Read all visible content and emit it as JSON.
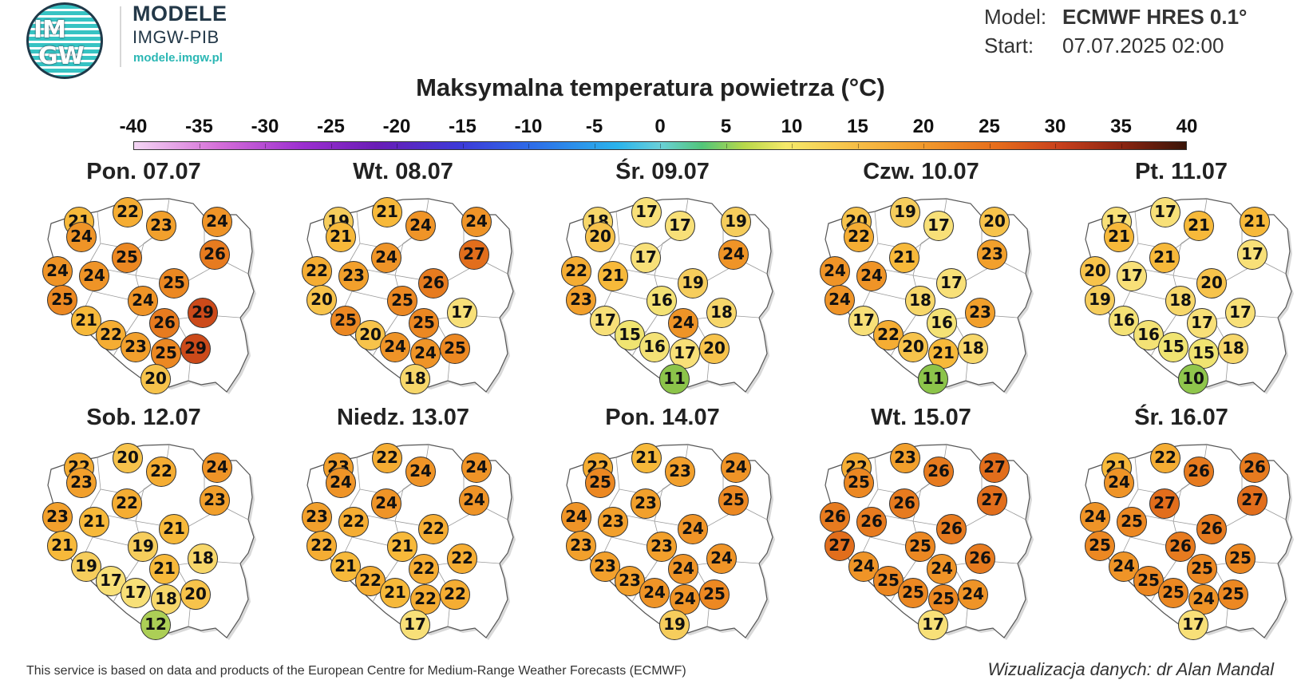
{
  "logo": {
    "text_top": "IM",
    "text_bottom": "GW",
    "name": "MODELE",
    "subname": "IMGW-PIB",
    "url": "modele.imgw.pl",
    "color_primary": "#233848",
    "color_accent": "#2bb7b4"
  },
  "meta": {
    "model_label": "Model:",
    "model_value": "ECMWF HRES 0.1°",
    "start_label": "Start:",
    "start_value": "07.07.2025 02:00"
  },
  "title": "Maksymalna temperatura powietrza (°C)",
  "colorbar": {
    "ticks": [
      "-40",
      "-35",
      "-30",
      "-25",
      "-20",
      "-15",
      "-10",
      "-5",
      "0",
      "5",
      "10",
      "15",
      "20",
      "25",
      "30",
      "35",
      "40"
    ],
    "min": -40,
    "max": 40
  },
  "days": [
    {
      "label": "Pon. 07.07",
      "temps": [
        21,
        22,
        24,
        23,
        24,
        25,
        26,
        24,
        24,
        25,
        25,
        24,
        29,
        21,
        26,
        22,
        23,
        25,
        29,
        20
      ]
    },
    {
      "label": "Wt. 08.07",
      "temps": [
        19,
        21,
        21,
        24,
        24,
        24,
        27,
        22,
        23,
        26,
        20,
        25,
        17,
        25,
        25,
        20,
        24,
        24,
        25,
        18
      ]
    },
    {
      "label": "Śr. 09.07",
      "temps": [
        18,
        17,
        20,
        17,
        19,
        17,
        24,
        22,
        21,
        19,
        23,
        16,
        18,
        17,
        24,
        15,
        16,
        17,
        20,
        11
      ]
    },
    {
      "label": "Czw. 10.07",
      "temps": [
        20,
        19,
        22,
        17,
        20,
        21,
        23,
        24,
        24,
        17,
        24,
        18,
        23,
        17,
        16,
        22,
        20,
        21,
        18,
        11
      ]
    },
    {
      "label": "Pt. 11.07",
      "temps": [
        17,
        17,
        21,
        21,
        21,
        21,
        17,
        20,
        17,
        20,
        19,
        18,
        17,
        16,
        17,
        16,
        15,
        15,
        18,
        10
      ]
    },
    {
      "label": "Sob. 12.07",
      "temps": [
        22,
        20,
        23,
        22,
        24,
        22,
        23,
        23,
        21,
        21,
        21,
        19,
        18,
        19,
        21,
        17,
        17,
        18,
        20,
        12
      ]
    },
    {
      "label": "Niedz. 13.07",
      "temps": [
        23,
        22,
        24,
        24,
        24,
        24,
        24,
        23,
        22,
        22,
        22,
        21,
        22,
        21,
        22,
        22,
        21,
        22,
        22,
        17
      ]
    },
    {
      "label": "Pon. 14.07",
      "temps": [
        22,
        21,
        25,
        23,
        24,
        23,
        25,
        24,
        23,
        24,
        23,
        23,
        24,
        23,
        24,
        23,
        24,
        24,
        25,
        19
      ]
    },
    {
      "label": "Wt. 15.07",
      "temps": [
        22,
        23,
        25,
        26,
        27,
        26,
        27,
        26,
        26,
        26,
        27,
        25,
        26,
        24,
        24,
        25,
        25,
        25,
        24,
        17
      ]
    },
    {
      "label": "Śr. 16.07",
      "temps": [
        21,
        22,
        24,
        26,
        26,
        27,
        27,
        24,
        25,
        26,
        25,
        26,
        25,
        24,
        25,
        25,
        25,
        24,
        25,
        17
      ]
    }
  ],
  "footer": {
    "left": "This service is based on data and products of the European Centre for Medium-Range Weather Forecasts (ECMWF)",
    "right": "Wizualizacja danych: dr Alan Mandal"
  }
}
